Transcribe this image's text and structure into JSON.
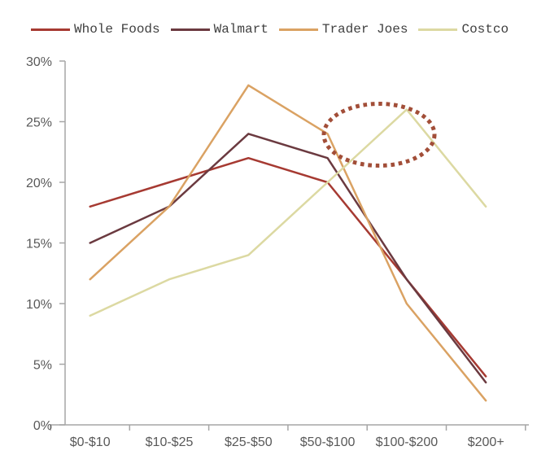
{
  "chart_data": {
    "type": "line",
    "categories": [
      "$0-$10",
      "$10-$25",
      "$25-$50",
      "$50-$100",
      "$100-$200",
      "$200+"
    ],
    "series": [
      {
        "name": "Whole Foods",
        "color": "#A63A32",
        "values": [
          18,
          20,
          22,
          20,
          12,
          4
        ]
      },
      {
        "name": "Walmart",
        "color": "#6B3A40",
        "values": [
          15,
          18,
          24,
          22,
          12,
          3.5
        ]
      },
      {
        "name": "Trader Joes",
        "color": "#DAA263",
        "values": [
          12,
          18,
          28,
          24,
          10,
          2
        ]
      },
      {
        "name": "Costco",
        "color": "#DCD9A2",
        "values": [
          9,
          12,
          14,
          20,
          26,
          18
        ]
      }
    ],
    "title": "",
    "xlabel": "",
    "ylabel": "",
    "y_axis": {
      "min": 0,
      "max": 30,
      "step": 5,
      "tick_labels": [
        "30%",
        "25%",
        "20%",
        "15%",
        "10%",
        "5%",
        "0%"
      ],
      "format": "percent"
    },
    "grid": false,
    "legend_position": "top",
    "annotation": {
      "shape": "dotted-ellipse",
      "color": "#A24E38",
      "target": "Costco peak of 26% at $100-$200"
    }
  },
  "axis_style": {
    "line_color": "#A6A6A6",
    "label_color": "#595959"
  }
}
